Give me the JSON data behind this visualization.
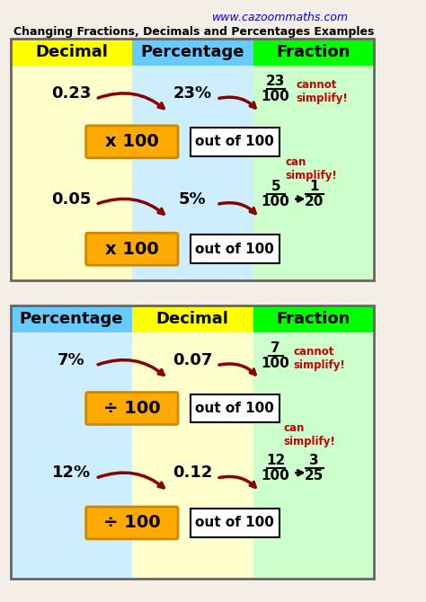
{
  "bg_color": "#f5eee6",
  "website": "www.cazoommaths.com",
  "subtitle": "Changing Fractions, Decimals and Percentages Examples",
  "panel1": {
    "header_colors": [
      "#ffff00",
      "#66ccff",
      "#00ff00"
    ],
    "header_labels": [
      "Decimal",
      "Percentage",
      "Fraction"
    ],
    "bg_colors": [
      "#ffffcc",
      "#cceeff",
      "#ccffcc"
    ],
    "row1": {
      "decimal": "0.23",
      "pct": "23%",
      "frac_num": "23",
      "frac_den": "100",
      "note": "cannot\nsimplify!",
      "note_color": "#cc0000"
    },
    "row2": {
      "decimal": "0.05",
      "pct": "5%",
      "frac_num": "5",
      "frac_den": "100",
      "simplified_num": "1",
      "simplified_den": "20",
      "note": "can\nsimplify!",
      "note_color": "#cc0000"
    },
    "box1_label": "x 100",
    "box2_label": "out of 100",
    "box_color": "#ffaa00",
    "box_outline": "#cc8800"
  },
  "panel2": {
    "header_colors": [
      "#66ccff",
      "#ffff00",
      "#00ff00"
    ],
    "header_labels": [
      "Percentage",
      "Decimal",
      "Fraction"
    ],
    "bg_colors": [
      "#cceeff",
      "#ffffcc",
      "#ccffcc"
    ],
    "row1": {
      "pct": "7%",
      "decimal": "0.07",
      "frac_num": "7",
      "frac_den": "100",
      "note": "cannot\nsimplify!",
      "note_color": "#cc0000"
    },
    "row2": {
      "pct": "12%",
      "decimal": "0.12",
      "frac_num": "12",
      "frac_den": "100",
      "simplified_num": "3",
      "simplified_den": "25",
      "note": "can\nsimplify!",
      "note_color": "#cc0000"
    },
    "box1_label": "÷ 100",
    "box2_label": "out of 100",
    "box_color": "#ffaa00",
    "box_outline": "#cc8800"
  }
}
